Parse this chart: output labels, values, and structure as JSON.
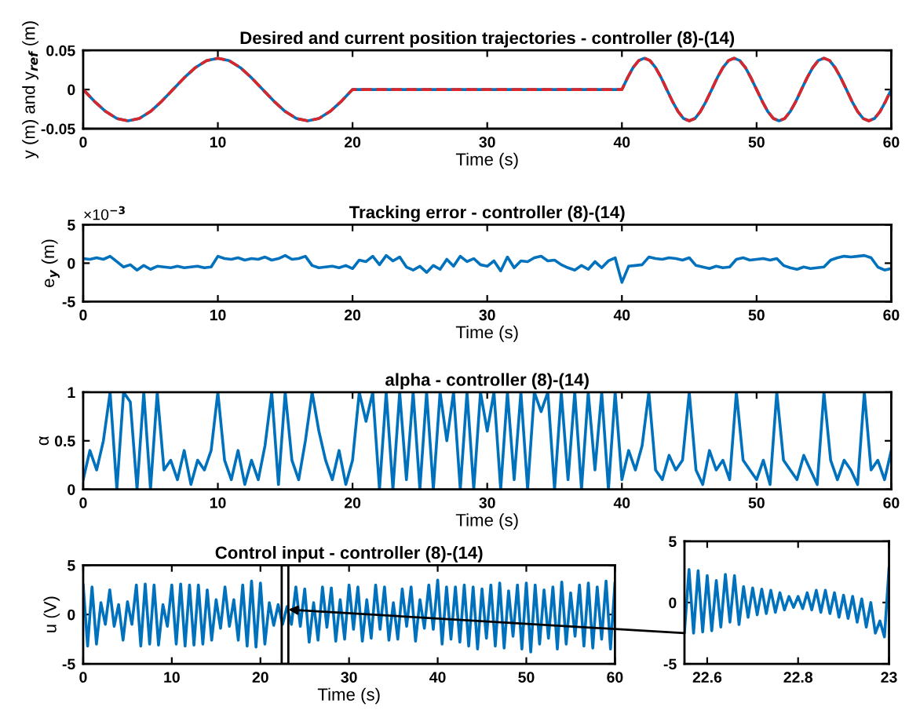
{
  "chart_data": [
    {
      "type": "line",
      "title": "Desired and current position trajectories - controller (8)-(14)",
      "xlabel": "Time (s)",
      "ylabel": "y (m) and y$_{ref}$ (m)",
      "xlim": [
        0,
        60
      ],
      "xticks": [
        0,
        10,
        20,
        30,
        40,
        50,
        60
      ],
      "ylim": [
        -0.05,
        0.05
      ],
      "yticks": [
        -0.05,
        0,
        0.05
      ],
      "grid": false,
      "legend": false,
      "x": [
        0,
        0.83,
        1.67,
        2.5,
        3.33,
        4.17,
        5,
        5.83,
        6.67,
        7.5,
        8.33,
        9.17,
        10,
        10.83,
        11.67,
        12.5,
        13.33,
        14.17,
        15,
        15.83,
        16.67,
        17.5,
        18.33,
        19.17,
        20,
        30,
        40,
        40.42,
        40.83,
        41.25,
        41.67,
        42.08,
        42.5,
        42.92,
        43.33,
        43.75,
        44.17,
        44.58,
        45,
        45.42,
        45.83,
        46.25,
        46.67,
        47.08,
        47.5,
        47.92,
        48.33,
        48.75,
        49.17,
        49.58,
        50,
        50.42,
        50.83,
        51.25,
        51.67,
        52.08,
        52.5,
        52.92,
        53.33,
        53.75,
        54.17,
        54.58,
        55,
        55.42,
        55.83,
        56.25,
        56.67,
        57.08,
        57.5,
        57.92,
        58.33,
        58.75,
        59.17,
        59.58,
        60
      ],
      "series": [
        {
          "color": "#0072bd",
          "line_style": "solid",
          "values": [
            0,
            -0.015,
            -0.028,
            -0.037,
            -0.04,
            -0.037,
            -0.028,
            -0.015,
            0,
            0.015,
            0.028,
            0.037,
            0.04,
            0.037,
            0.028,
            0.015,
            0,
            -0.015,
            -0.028,
            -0.037,
            -0.04,
            -0.037,
            -0.028,
            -0.015,
            0,
            0,
            0,
            0.015,
            0.028,
            0.037,
            0.04,
            0.037,
            0.028,
            0.015,
            0,
            -0.015,
            -0.028,
            -0.037,
            -0.04,
            -0.037,
            -0.028,
            -0.015,
            0,
            0.015,
            0.028,
            0.037,
            0.04,
            0.037,
            0.028,
            0.015,
            0,
            -0.015,
            -0.028,
            -0.037,
            -0.04,
            -0.037,
            -0.028,
            -0.015,
            0,
            0.015,
            0.028,
            0.037,
            0.04,
            0.037,
            0.028,
            0.015,
            0,
            -0.015,
            -0.028,
            -0.037,
            -0.04,
            -0.037,
            -0.028,
            -0.015,
            0
          ]
        },
        {
          "color": "#d9262b",
          "line_style": "dashed",
          "values": [
            0,
            -0.015,
            -0.028,
            -0.037,
            -0.04,
            -0.037,
            -0.028,
            -0.015,
            0,
            0.015,
            0.028,
            0.037,
            0.04,
            0.037,
            0.028,
            0.015,
            0,
            -0.015,
            -0.028,
            -0.037,
            -0.04,
            -0.037,
            -0.028,
            -0.015,
            0,
            0,
            0,
            0.015,
            0.028,
            0.037,
            0.04,
            0.037,
            0.028,
            0.015,
            0,
            -0.015,
            -0.028,
            -0.037,
            -0.04,
            -0.037,
            -0.028,
            -0.015,
            0,
            0.015,
            0.028,
            0.037,
            0.04,
            0.037,
            0.028,
            0.015,
            0,
            -0.015,
            -0.028,
            -0.037,
            -0.04,
            -0.037,
            -0.028,
            -0.015,
            0,
            0.015,
            0.028,
            0.037,
            0.04,
            0.037,
            0.028,
            0.015,
            0,
            -0.015,
            -0.028,
            -0.037,
            -0.04,
            -0.037,
            -0.028,
            -0.015,
            0
          ]
        }
      ]
    },
    {
      "type": "line",
      "title": "Tracking error - controller (8)-(14)",
      "xlabel": "Time (s)",
      "ylabel": "e$_{y}$ (m)",
      "annotations": [
        "×10$^{−3}$"
      ],
      "xlim": [
        0,
        60
      ],
      "xticks": [
        0,
        10,
        20,
        30,
        40,
        50,
        60
      ],
      "ylim": [
        -5,
        5
      ],
      "yticks": [
        -5,
        0,
        5
      ],
      "grid": false,
      "legend": false,
      "x": [
        0,
        0.5,
        1,
        1.5,
        2,
        2.5,
        3,
        3.5,
        4,
        4.5,
        5,
        5.5,
        6,
        6.5,
        7,
        7.5,
        8,
        8.5,
        9,
        9.5,
        10,
        10.5,
        11,
        11.5,
        12,
        12.5,
        13,
        13.5,
        14,
        14.5,
        15,
        15.5,
        16,
        16.5,
        17,
        17.5,
        18,
        18.5,
        19,
        19.5,
        20,
        20.5,
        21,
        21.5,
        22,
        22.5,
        23,
        23.5,
        24,
        24.5,
        25,
        25.5,
        26,
        26.5,
        27,
        27.5,
        28,
        28.5,
        29,
        29.5,
        30,
        30.5,
        31,
        31.5,
        32,
        32.5,
        33,
        33.5,
        34,
        34.5,
        35,
        35.5,
        36,
        36.5,
        37,
        37.5,
        38,
        38.5,
        39,
        39.5,
        40,
        40.5,
        41,
        41.5,
        42,
        42.5,
        43,
        43.5,
        44,
        44.5,
        45,
        45.5,
        46,
        46.5,
        47,
        47.5,
        48,
        48.5,
        49,
        49.5,
        50,
        50.5,
        51,
        51.5,
        52,
        52.5,
        53,
        53.5,
        54,
        54.5,
        55,
        55.5,
        56,
        56.5,
        57,
        57.5,
        58,
        58.5,
        59,
        59.5,
        60
      ],
      "series": [
        {
          "color": "#0072bd",
          "line_style": "solid",
          "values": [
            0.6,
            0.5,
            0.7,
            0.5,
            0.9,
            0.2,
            -0.5,
            -0.2,
            -0.9,
            -0.3,
            -0.8,
            -0.4,
            -0.5,
            -0.6,
            -0.4,
            -0.6,
            -0.5,
            -0.4,
            -0.6,
            -0.5,
            0.9,
            0.6,
            0.5,
            0.7,
            0.4,
            0.6,
            0.5,
            0.8,
            0.4,
            0.6,
            1,
            0.5,
            0.6,
            0.9,
            -0.3,
            -0.6,
            -0.5,
            -0.4,
            -0.6,
            -0.3,
            -0.7,
            0.4,
            0.2,
            0.9,
            -0.2,
            1,
            0.3,
            0.8,
            -0.5,
            -0.9,
            -0.4,
            -1.2,
            -0.3,
            -0.8,
            0.5,
            -0.4,
            0.9,
            0.2,
            0.6,
            -0.2,
            -0.4,
            0.3,
            -1,
            0.8,
            -0.6,
            0.3,
            0.2,
            0.7,
            0.9,
            0.3,
            0.4,
            -0.2,
            -0.6,
            -0.9,
            -0.3,
            -0.8,
            0.2,
            -0.6,
            0.3,
            0.7,
            -2.5,
            -0.4,
            -0.3,
            -0.2,
            0.8,
            0.6,
            0.5,
            0.7,
            0.6,
            0.4,
            0.7,
            -0.3,
            -0.5,
            -0.7,
            -0.4,
            -0.6,
            -0.5,
            0.5,
            0.7,
            0.4,
            0.5,
            0.6,
            0.4,
            0.6,
            -0.3,
            -0.6,
            -0.8,
            -0.5,
            -0.7,
            -0.6,
            -0.5,
            0.4,
            0.7,
            0.9,
            0.8,
            0.9,
            1,
            0.7,
            -0.5,
            -0.9,
            -0.7
          ]
        }
      ]
    },
    {
      "type": "line",
      "title": "alpha - controller (8)-(14)",
      "xlabel": "Time (s)",
      "ylabel": "α",
      "xlim": [
        0,
        60
      ],
      "xticks": [
        0,
        10,
        20,
        30,
        40,
        50,
        60
      ],
      "ylim": [
        0,
        1
      ],
      "yticks": [
        0,
        0.5,
        1
      ],
      "grid": false,
      "legend": false,
      "x": [
        0,
        0.5,
        1,
        1.5,
        2,
        2.5,
        3,
        3.5,
        4,
        4.5,
        5,
        5.5,
        6,
        6.5,
        7,
        7.5,
        8,
        8.5,
        9,
        9.5,
        10,
        10.5,
        11,
        11.5,
        12,
        12.5,
        13,
        13.5,
        14,
        14.5,
        15,
        15.5,
        16,
        16.5,
        17,
        17.5,
        18,
        18.5,
        19,
        19.5,
        20,
        20.5,
        21,
        21.5,
        22,
        22.5,
        23,
        23.5,
        24,
        24.5,
        25,
        25.5,
        26,
        26.5,
        27,
        27.5,
        28,
        28.5,
        29,
        29.5,
        30,
        30.5,
        31,
        31.5,
        32,
        32.5,
        33,
        33.5,
        34,
        34.5,
        35,
        35.5,
        36,
        36.5,
        37,
        37.5,
        38,
        38.5,
        39,
        39.5,
        40,
        40.5,
        41,
        41.5,
        42,
        42.5,
        43,
        43.5,
        44,
        44.5,
        45,
        45.5,
        46,
        46.5,
        47,
        47.5,
        48,
        48.5,
        49,
        49.5,
        50,
        50.5,
        51,
        51.5,
        52,
        52.5,
        53,
        53.5,
        54,
        54.5,
        55,
        55.5,
        56,
        56.5,
        57,
        57.5,
        58,
        58.5,
        59,
        59.5,
        60
      ],
      "series": [
        {
          "color": "#0072bd",
          "line_style": "solid",
          "values": [
            0.1,
            0.4,
            0.2,
            0.5,
            1,
            0,
            1,
            0.9,
            0,
            1,
            0,
            1,
            0.2,
            0.3,
            0.1,
            0.4,
            0.05,
            0.3,
            0.2,
            0.4,
            1,
            0.3,
            0.1,
            0.4,
            0.05,
            0.3,
            0.1,
            0.45,
            1,
            0.05,
            1,
            0.3,
            0.1,
            0.5,
            1,
            0.6,
            0.3,
            0.1,
            0.4,
            0.05,
            0.3,
            1,
            0.7,
            1,
            0,
            1,
            0,
            1,
            0.1,
            1,
            0,
            1,
            0,
            1,
            0.5,
            1,
            0,
            1,
            0,
            1,
            0.6,
            1,
            0,
            1,
            0.1,
            1,
            0,
            1,
            0.8,
            1,
            0,
            1,
            0.1,
            1,
            0,
            1,
            0.2,
            1,
            0,
            1,
            0.1,
            0.4,
            0.2,
            0.45,
            1,
            0.2,
            0.1,
            0.35,
            0.2,
            0.3,
            1,
            0.2,
            0.05,
            0.4,
            0.2,
            0.3,
            0.1,
            1,
            0.3,
            0.2,
            0.1,
            0.3,
            0.05,
            1,
            0.3,
            0.2,
            0.1,
            0.35,
            0.2,
            0.05,
            1,
            0.3,
            0.1,
            0.3,
            0.2,
            0.05,
            1,
            0.2,
            0.3,
            0.1,
            0.4
          ]
        }
      ]
    },
    {
      "type": "line",
      "title": "Control input - controller (8)-(14)",
      "xlabel": "Time (s)",
      "ylabel": "u (V)",
      "xlim": [
        0,
        60
      ],
      "xticks": [
        0,
        10,
        20,
        30,
        40,
        50,
        60
      ],
      "ylim": [
        -5,
        5
      ],
      "yticks": [
        -5,
        0,
        5
      ],
      "grid": false,
      "legend": false,
      "x": [
        0,
        0.5,
        1,
        1.5,
        2,
        2.5,
        3,
        3.5,
        4,
        4.5,
        5,
        5.5,
        6,
        6.5,
        7,
        7.5,
        8,
        8.5,
        9,
        9.5,
        10,
        10.5,
        11,
        11.5,
        12,
        12.5,
        13,
        13.5,
        14,
        14.5,
        15,
        15.5,
        16,
        16.5,
        17,
        17.5,
        18,
        18.5,
        19,
        19.5,
        20,
        20.5,
        21,
        21.5,
        22,
        22.5,
        23,
        23.5,
        24,
        24.5,
        25,
        25.5,
        26,
        26.5,
        27,
        27.5,
        28,
        28.5,
        29,
        29.5,
        30,
        30.5,
        31,
        31.5,
        32,
        32.5,
        33,
        33.5,
        34,
        34.5,
        35,
        35.5,
        36,
        36.5,
        37,
        37.5,
        38,
        38.5,
        39,
        39.5,
        40,
        40.5,
        41,
        41.5,
        42,
        42.5,
        43,
        43.5,
        44,
        44.5,
        45,
        45.5,
        46,
        46.5,
        47,
        47.5,
        48,
        48.5,
        49,
        49.5,
        50,
        50.5,
        51,
        51.5,
        52,
        52.5,
        53,
        53.5,
        54,
        54.5,
        55,
        55.5,
        56,
        56.5,
        57,
        57.5,
        58,
        58.5,
        59,
        59.5,
        60
      ],
      "series": [
        {
          "color": "#0072bd",
          "line_style": "solid",
          "values": [
            3,
            -3.2,
            2.8,
            -3,
            1.2,
            -1,
            2.5,
            -1.2,
            1,
            -2.6,
            1.3,
            -1,
            3,
            -3.2,
            3.1,
            -3,
            3,
            -3.1,
            1,
            -1.2,
            3,
            -3,
            3.1,
            -3.2,
            3,
            -3.1,
            3,
            -3,
            2.5,
            -2.6,
            1.5,
            -1.4,
            2.8,
            -1.2,
            1.5,
            -2.6,
            3,
            -3.2,
            3.4,
            -3.3,
            3.2,
            -3,
            1.2,
            -1.1,
            1,
            -1,
            0.8,
            -1,
            2.8,
            -1.2,
            2.6,
            -2.8,
            1.2,
            -2.6,
            2.8,
            -1.3,
            2.7,
            -2.7,
            1.5,
            -2.5,
            3,
            -1.5,
            2.8,
            -2.7,
            1.5,
            -2.4,
            3,
            -1.5,
            2.8,
            -2.6,
            1.2,
            -2.5,
            2.6,
            -1.2,
            2.8,
            -2.7,
            1.5,
            -1.4,
            3,
            -1.5,
            3.5,
            -3,
            2.8,
            -2.5,
            2.8,
            -2.8,
            3,
            -3.2,
            2.8,
            -3.5,
            2.6,
            -2.4,
            3,
            -3.2,
            3.2,
            -3.4,
            2.4,
            -2.2,
            3,
            -3.5,
            3.2,
            -3.8,
            3,
            -3,
            2.5,
            -2.4,
            2.8,
            -3.5,
            3.3,
            -3,
            2.2,
            -2.2,
            3,
            -3.2,
            3.2,
            -3.4,
            2.8,
            -2.5,
            3.4,
            -3.5,
            3.2
          ]
        }
      ]
    },
    {
      "type": "line",
      "xlim": [
        22.55,
        23
      ],
      "xticks": [
        22.6,
        22.8,
        23
      ],
      "ylim": [
        -5,
        5
      ],
      "yticks": [
        -5,
        0,
        5
      ],
      "grid": false,
      "legend": false,
      "x": [
        22.55,
        22.56,
        22.57,
        22.58,
        22.59,
        22.6,
        22.61,
        22.62,
        22.63,
        22.64,
        22.65,
        22.66,
        22.67,
        22.68,
        22.69,
        22.7,
        22.71,
        22.72,
        22.73,
        22.74,
        22.75,
        22.76,
        22.77,
        22.78,
        22.79,
        22.8,
        22.81,
        22.82,
        22.83,
        22.84,
        22.85,
        22.86,
        22.87,
        22.88,
        22.89,
        22.9,
        22.91,
        22.92,
        22.93,
        22.94,
        22.95,
        22.96,
        22.97,
        22.98,
        22.99,
        23
      ],
      "series": [
        {
          "color": "#0072bd",
          "line_style": "solid",
          "values": [
            -2.4,
            2.7,
            -2.5,
            2.6,
            -2.4,
            2.2,
            -2.3,
            1.8,
            -2,
            2.3,
            -1.6,
            2.2,
            -1.8,
            1.3,
            -1.2,
            1.2,
            -1,
            1.1,
            -0.9,
            1,
            -0.8,
            0.8,
            -0.6,
            0.5,
            -0.4,
            0.5,
            -0.5,
            0.8,
            -0.6,
            1,
            -0.8,
            1,
            -0.9,
            0.8,
            -1.2,
            0.6,
            -1.3,
            0.5,
            -1.6,
            0.3,
            -2,
            0,
            -2.5,
            -1.5,
            -2.8,
            2.8
          ]
        }
      ]
    }
  ]
}
